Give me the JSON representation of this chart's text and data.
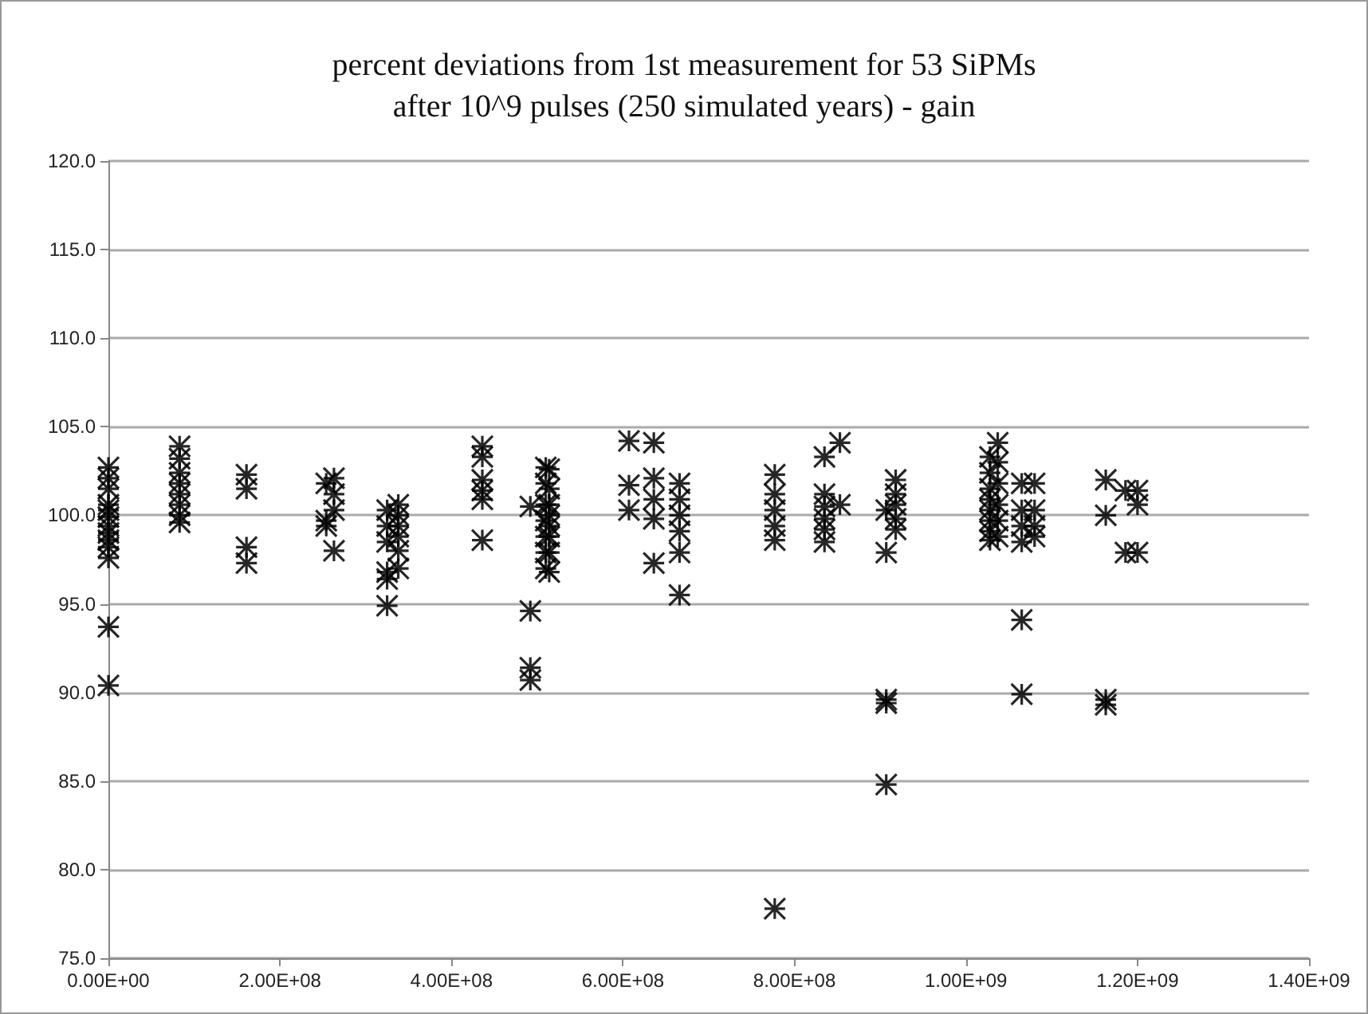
{
  "chart_data": {
    "type": "scatter",
    "title": "percent deviations from 1st measurement for 53 SiPMs\nafter 10^9 pulses (250 simulated years) - gain",
    "x": [
      0,
      0,
      0,
      0,
      0,
      0,
      0,
      0,
      0,
      0,
      0,
      0,
      0,
      83000000.0,
      83000000.0,
      83000000.0,
      83000000.0,
      83000000.0,
      83000000.0,
      83000000.0,
      83000000.0,
      161000000.0,
      161000000.0,
      161000000.0,
      161000000.0,
      254000000.0,
      254000000.0,
      254000000.0,
      263000000.0,
      263000000.0,
      263000000.0,
      263000000.0,
      325000000.0,
      325000000.0,
      325000000.0,
      325000000.0,
      325000000.0,
      325000000.0,
      338000000.0,
      338000000.0,
      338000000.0,
      338000000.0,
      338000000.0,
      338000000.0,
      436000000.0,
      436000000.0,
      436000000.0,
      436000000.0,
      436000000.0,
      436000000.0,
      492000000.0,
      492000000.0,
      492000000.0,
      492000000.0,
      510000000.0,
      510000000.0,
      510000000.0,
      510000000.0,
      510000000.0,
      510000000.0,
      510000000.0,
      514000000.0,
      514000000.0,
      514000000.0,
      514000000.0,
      514000000.0,
      514000000.0,
      514000000.0,
      514000000.0,
      607000000.0,
      607000000.0,
      607000000.0,
      636000000.0,
      636000000.0,
      636000000.0,
      636000000.0,
      636000000.0,
      666000000.0,
      666000000.0,
      666000000.0,
      666000000.0,
      666000000.0,
      666000000.0,
      777000000.0,
      777000000.0,
      777000000.0,
      777000000.0,
      777000000.0,
      777000000.0,
      835000000.0,
      835000000.0,
      835000000.0,
      835000000.0,
      835000000.0,
      835000000.0,
      853000000.0,
      853000000.0,
      907000000.0,
      907000000.0,
      907000000.0,
      907000000.0,
      907000000.0,
      918000000.0,
      918000000.0,
      918000000.0,
      918000000.0,
      918000000.0,
      1028000000.0,
      1028000000.0,
      1028000000.0,
      1028000000.0,
      1028000000.0,
      1028000000.0,
      1028000000.0,
      1028000000.0,
      1037000000.0,
      1037000000.0,
      1037000000.0,
      1037000000.0,
      1037000000.0,
      1037000000.0,
      1065000000.0,
      1065000000.0,
      1065000000.0,
      1065000000.0,
      1065000000.0,
      1065000000.0,
      1080000000.0,
      1080000000.0,
      1080000000.0,
      1080000000.0,
      1163000000.0,
      1163000000.0,
      1163000000.0,
      1163000000.0,
      1186000000.0,
      1186000000.0,
      1200000000.0,
      1200000000.0,
      1200000000.0
    ],
    "series": [
      {
        "color": "#000000",
        "values": [
          102.7,
          102.1,
          101.5,
          100.6,
          100.3,
          99.9,
          99.4,
          99.0,
          98.6,
          98.2,
          97.6,
          93.7,
          90.4,
          103.9,
          103.2,
          102.4,
          101.8,
          101.2,
          100.6,
          100.0,
          99.6,
          102.3,
          101.5,
          98.2,
          97.3,
          101.8,
          99.7,
          99.4,
          102.1,
          101.2,
          100.3,
          98.0,
          100.3,
          99.4,
          98.5,
          96.8,
          96.4,
          94.9,
          100.6,
          100.0,
          99.4,
          98.8,
          98.0,
          97.0,
          103.9,
          103.3,
          102.0,
          101.4,
          100.9,
          98.6,
          100.5,
          94.6,
          91.4,
          90.7,
          102.7,
          101.8,
          100.6,
          99.7,
          98.8,
          97.9,
          97.0,
          102.6,
          101.5,
          100.6,
          100.0,
          99.4,
          98.8,
          97.9,
          96.8,
          104.2,
          101.7,
          100.3,
          104.1,
          102.1,
          100.9,
          99.8,
          97.3,
          101.8,
          100.9,
          100.0,
          99.1,
          97.9,
          95.5,
          102.3,
          101.2,
          100.3,
          99.4,
          98.6,
          77.8,
          103.3,
          101.2,
          100.5,
          99.8,
          99.2,
          98.5,
          104.1,
          100.6,
          100.3,
          97.9,
          89.6,
          89.4,
          84.8,
          102.0,
          101.2,
          100.6,
          99.8,
          99.2,
          103.3,
          102.4,
          101.5,
          100.9,
          100.3,
          99.7,
          99.1,
          98.6,
          104.1,
          103.0,
          101.8,
          100.6,
          99.7,
          98.8,
          101.8,
          100.3,
          99.4,
          98.5,
          94.1,
          89.9,
          101.8,
          100.3,
          99.4,
          98.8,
          102.0,
          100.0,
          89.6,
          89.3,
          101.4,
          97.9,
          101.4,
          100.6,
          97.9
        ]
      }
    ],
    "xlim": [
      0,
      1400000000.0
    ],
    "xticks": [
      {
        "value": 0,
        "label": "0.00E+00"
      },
      {
        "value": 200000000.0,
        "label": "2.00E+08"
      },
      {
        "value": 400000000.0,
        "label": "4.00E+08"
      },
      {
        "value": 600000000.0,
        "label": "6.00E+08"
      },
      {
        "value": 800000000.0,
        "label": "8.00E+08"
      },
      {
        "value": 1000000000.0,
        "label": "1.00E+09"
      },
      {
        "value": 1200000000.0,
        "label": "1.20E+09"
      },
      {
        "value": 1400000000.0,
        "label": "1.40E+09"
      }
    ],
    "ylim": [
      75,
      120
    ],
    "yticks": [
      {
        "value": 75,
        "label": "75.0"
      },
      {
        "value": 80,
        "label": "80.0"
      },
      {
        "value": 85,
        "label": "85.0"
      },
      {
        "value": 90,
        "label": "90.0"
      },
      {
        "value": 95,
        "label": "95.0"
      },
      {
        "value": 100,
        "label": "100.0"
      },
      {
        "value": 105,
        "label": "105.0"
      },
      {
        "value": 110,
        "label": "110.0"
      },
      {
        "value": 115,
        "label": "115.0"
      },
      {
        "value": 120,
        "label": "120.0"
      }
    ],
    "grid": "y",
    "marker": "cross"
  }
}
